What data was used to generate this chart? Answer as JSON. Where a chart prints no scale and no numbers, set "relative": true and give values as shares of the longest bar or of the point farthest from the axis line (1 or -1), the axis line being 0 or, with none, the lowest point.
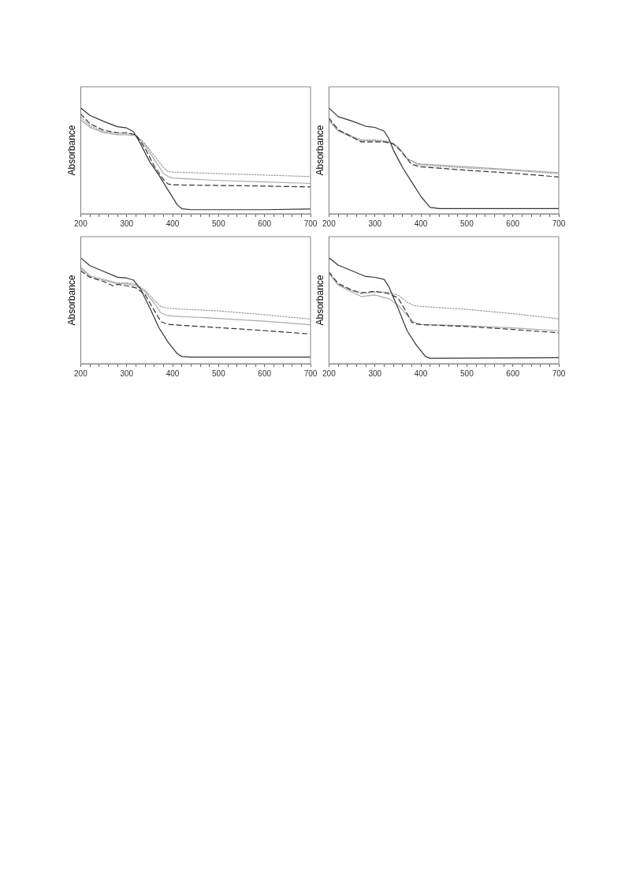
{
  "chart_data": [
    {
      "type": "line",
      "ylabel": "Absorbance",
      "relative": true,
      "xlim": [
        200,
        700
      ],
      "xticks": [
        200,
        {
          "value": 220,
          "label": null
        },
        {
          "value": 240,
          "label": null
        },
        {
          "value": 260,
          "label": null
        },
        {
          "value": 280,
          "label": null
        },
        300,
        {
          "value": 320,
          "label": null
        },
        {
          "value": 340,
          "label": null
        },
        {
          "value": 360,
          "label": null
        },
        {
          "value": 380,
          "label": null
        },
        400,
        {
          "value": 420,
          "label": null
        },
        {
          "value": 440,
          "label": null
        },
        {
          "value": 460,
          "label": null
        },
        {
          "value": 480,
          "label": null
        },
        500,
        {
          "value": 520,
          "label": null
        },
        {
          "value": 540,
          "label": null
        },
        {
          "value": 560,
          "label": null
        },
        {
          "value": 580,
          "label": null
        },
        600,
        {
          "value": 620,
          "label": null
        },
        {
          "value": 640,
          "label": null
        },
        {
          "value": 660,
          "label": null
        },
        {
          "value": 680,
          "label": null
        },
        700
      ],
      "grid": false,
      "legend": false,
      "marker": "none",
      "series": [
        {
          "color": "#333333",
          "line_style": "solid",
          "x": [
            200,
            220,
            250,
            280,
            300,
            315,
            330,
            350,
            370,
            390,
            410,
            420,
            440,
            500,
            600,
            700
          ],
          "values": [
            1.0,
            0.93,
            0.873,
            0.823,
            0.811,
            0.775,
            0.662,
            0.493,
            0.366,
            0.225,
            0.085,
            0.048,
            0.039,
            0.039,
            0.039,
            0.045
          ]
        },
        {
          "color": "#333333",
          "line_style": "dashed",
          "x": [
            200,
            220,
            250,
            280,
            300,
            320,
            340,
            360,
            380,
            390,
            400,
            500,
            600,
            700
          ],
          "values": [
            0.944,
            0.851,
            0.789,
            0.766,
            0.766,
            0.746,
            0.62,
            0.451,
            0.324,
            0.282,
            0.273,
            0.268,
            0.262,
            0.254
          ]
        },
        {
          "color": "#aaaaaa",
          "line_style": "solid",
          "x": [
            200,
            220,
            250,
            280,
            300,
            320,
            340,
            360,
            380,
            390,
            400,
            500,
            600,
            700
          ],
          "values": [
            0.887,
            0.817,
            0.766,
            0.746,
            0.746,
            0.738,
            0.648,
            0.513,
            0.38,
            0.352,
            0.338,
            0.315,
            0.301,
            0.287
          ]
        },
        {
          "color": "#999999",
          "line_style": "dotted",
          "x": [
            200,
            220,
            250,
            280,
            300,
            320,
            340,
            360,
            380,
            390,
            400,
            500,
            600,
            700
          ],
          "values": [
            0.915,
            0.831,
            0.775,
            0.761,
            0.761,
            0.744,
            0.662,
            0.549,
            0.437,
            0.4,
            0.394,
            0.38,
            0.366,
            0.352
          ]
        }
      ]
    },
    {
      "type": "line",
      "ylabel": "Absorbance",
      "relative": true,
      "xlim": [
        200,
        700
      ],
      "xticks": [
        200,
        {
          "value": 220,
          "label": null
        },
        {
          "value": 240,
          "label": null
        },
        {
          "value": 260,
          "label": null
        },
        {
          "value": 280,
          "label": null
        },
        300,
        {
          "value": 320,
          "label": null
        },
        {
          "value": 340,
          "label": null
        },
        {
          "value": 360,
          "label": null
        },
        {
          "value": 380,
          "label": null
        },
        400,
        {
          "value": 420,
          "label": null
        },
        {
          "value": 440,
          "label": null
        },
        {
          "value": 460,
          "label": null
        },
        {
          "value": 480,
          "label": null
        },
        500,
        {
          "value": 520,
          "label": null
        },
        {
          "value": 540,
          "label": null
        },
        {
          "value": 560,
          "label": null
        },
        {
          "value": 580,
          "label": null
        },
        600,
        {
          "value": 620,
          "label": null
        },
        {
          "value": 640,
          "label": null
        },
        {
          "value": 660,
          "label": null
        },
        {
          "value": 680,
          "label": null
        },
        700
      ],
      "grid": false,
      "legend": false,
      "marker": "none",
      "series": [
        {
          "color": "#333333",
          "line_style": "solid",
          "x": [
            200,
            220,
            250,
            280,
            300,
            320,
            330,
            340,
            360,
            380,
            400,
            420,
            440,
            700
          ],
          "values": [
            1.0,
            0.918,
            0.877,
            0.827,
            0.816,
            0.781,
            0.712,
            0.603,
            0.438,
            0.301,
            0.164,
            0.06,
            0.049,
            0.049
          ]
        },
        {
          "color": "#333333",
          "line_style": "dashed",
          "x": [
            200,
            220,
            250,
            270,
            300,
            320,
            340,
            360,
            380,
            400,
            500,
            600,
            700
          ],
          "values": [
            0.904,
            0.795,
            0.726,
            0.679,
            0.679,
            0.679,
            0.663,
            0.575,
            0.466,
            0.444,
            0.411,
            0.384,
            0.348
          ]
        },
        {
          "color": "#aaaaaa",
          "line_style": "solid",
          "x": [
            200,
            220,
            250,
            270,
            300,
            330,
            350,
            370,
            390,
            400,
            500,
            600,
            700
          ],
          "values": [
            0.877,
            0.781,
            0.726,
            0.69,
            0.69,
            0.679,
            0.63,
            0.521,
            0.479,
            0.471,
            0.444,
            0.416,
            0.389
          ]
        },
        {
          "color": "#999999",
          "line_style": "dotted",
          "x": [
            200,
            220,
            250,
            270,
            300,
            330,
            350,
            370,
            390,
            400,
            500,
            600,
            700
          ],
          "values": [
            0.89,
            0.789,
            0.734,
            0.699,
            0.699,
            0.685,
            0.636,
            0.526,
            0.471,
            0.46,
            0.433,
            0.411,
            0.378
          ]
        }
      ]
    },
    {
      "type": "line",
      "ylabel": "Absorbance",
      "relative": true,
      "xlim": [
        200,
        700
      ],
      "xticks": [
        200,
        {
          "value": 220,
          "label": null
        },
        {
          "value": 240,
          "label": null
        },
        {
          "value": 260,
          "label": null
        },
        {
          "value": 280,
          "label": null
        },
        300,
        {
          "value": 320,
          "label": null
        },
        {
          "value": 340,
          "label": null
        },
        {
          "value": 360,
          "label": null
        },
        {
          "value": 380,
          "label": null
        },
        400,
        {
          "value": 420,
          "label": null
        },
        {
          "value": 440,
          "label": null
        },
        {
          "value": 460,
          "label": null
        },
        {
          "value": 480,
          "label": null
        },
        500,
        {
          "value": 520,
          "label": null
        },
        {
          "value": 540,
          "label": null
        },
        {
          "value": 560,
          "label": null
        },
        {
          "value": 580,
          "label": null
        },
        600,
        {
          "value": 620,
          "label": null
        },
        {
          "value": 640,
          "label": null
        },
        {
          "value": 660,
          "label": null
        },
        {
          "value": 680,
          "label": null
        },
        700
      ],
      "grid": false,
      "legend": false,
      "marker": "none",
      "series": [
        {
          "color": "#333333",
          "line_style": "solid",
          "x": [
            200,
            220,
            250,
            280,
            300,
            315,
            330,
            350,
            370,
            390,
            410,
            420,
            440,
            700
          ],
          "values": [
            1.0,
            0.926,
            0.872,
            0.817,
            0.809,
            0.79,
            0.708,
            0.531,
            0.341,
            0.204,
            0.095,
            0.068,
            0.063,
            0.063
          ]
        },
        {
          "color": "#333333",
          "line_style": "dashed",
          "x": [
            200,
            220,
            250,
            270,
            280,
            300,
            320,
            340,
            360,
            375,
            390,
            400,
            500,
            600,
            700
          ],
          "values": [
            0.877,
            0.817,
            0.777,
            0.736,
            0.749,
            0.736,
            0.717,
            0.654,
            0.504,
            0.395,
            0.373,
            0.368,
            0.341,
            0.313,
            0.281
          ]
        },
        {
          "color": "#aaaaaa",
          "line_style": "solid",
          "x": [
            200,
            220,
            250,
            280,
            300,
            320,
            340,
            360,
            375,
            390,
            400,
            500,
            600,
            700
          ],
          "values": [
            0.913,
            0.831,
            0.79,
            0.755,
            0.755,
            0.736,
            0.681,
            0.572,
            0.477,
            0.455,
            0.45,
            0.428,
            0.401,
            0.368
          ]
        },
        {
          "color": "#999999",
          "line_style": "dotted",
          "x": [
            200,
            220,
            250,
            280,
            300,
            320,
            340,
            360,
            375,
            390,
            400,
            500,
            600,
            700
          ],
          "values": [
            0.899,
            0.826,
            0.796,
            0.763,
            0.763,
            0.749,
            0.695,
            0.599,
            0.537,
            0.526,
            0.52,
            0.499,
            0.463,
            0.422
          ]
        }
      ]
    },
    {
      "type": "line",
      "ylabel": "Absorbance",
      "relative": true,
      "xlim": [
        200,
        700
      ],
      "xticks": [
        200,
        {
          "value": 220,
          "label": null
        },
        {
          "value": 240,
          "label": null
        },
        {
          "value": 260,
          "label": null
        },
        {
          "value": 280,
          "label": null
        },
        300,
        {
          "value": 320,
          "label": null
        },
        {
          "value": 340,
          "label": null
        },
        {
          "value": 360,
          "label": null
        },
        {
          "value": 380,
          "label": null
        },
        400,
        {
          "value": 420,
          "label": null
        },
        {
          "value": 440,
          "label": null
        },
        {
          "value": 460,
          "label": null
        },
        {
          "value": 480,
          "label": null
        },
        500,
        {
          "value": 520,
          "label": null
        },
        {
          "value": 540,
          "label": null
        },
        {
          "value": 560,
          "label": null
        },
        {
          "value": 580,
          "label": null
        },
        600,
        {
          "value": 620,
          "label": null
        },
        {
          "value": 640,
          "label": null
        },
        {
          "value": 660,
          "label": null
        },
        {
          "value": 680,
          "label": null
        },
        700
      ],
      "grid": false,
      "legend": false,
      "marker": "none",
      "series": [
        {
          "color": "#333333",
          "line_style": "solid",
          "x": [
            200,
            220,
            250,
            280,
            300,
            320,
            330,
            350,
            370,
            390,
            410,
            420,
            440,
            700
          ],
          "values": [
            1.0,
            0.932,
            0.878,
            0.824,
            0.816,
            0.797,
            0.73,
            0.527,
            0.311,
            0.176,
            0.068,
            0.051,
            0.051,
            0.057
          ]
        },
        {
          "color": "#333333",
          "line_style": "dashed",
          "x": [
            200,
            220,
            250,
            270,
            300,
            330,
            350,
            365,
            380,
            390,
            400,
            500,
            600,
            700
          ],
          "values": [
            0.865,
            0.757,
            0.695,
            0.67,
            0.684,
            0.662,
            0.622,
            0.514,
            0.392,
            0.376,
            0.37,
            0.351,
            0.324,
            0.292
          ]
        },
        {
          "color": "#aaaaaa",
          "line_style": "solid",
          "x": [
            200,
            220,
            250,
            270,
            300,
            330,
            350,
            370,
            385,
            400,
            500,
            600,
            700
          ],
          "values": [
            0.851,
            0.743,
            0.676,
            0.635,
            0.649,
            0.614,
            0.554,
            0.459,
            0.392,
            0.37,
            0.359,
            0.338,
            0.311
          ]
        },
        {
          "color": "#999999",
          "line_style": "dotted",
          "x": [
            200,
            220,
            250,
            270,
            300,
            330,
            350,
            370,
            385,
            400,
            500,
            600,
            700
          ],
          "values": [
            0.857,
            0.749,
            0.689,
            0.662,
            0.676,
            0.676,
            0.649,
            0.581,
            0.549,
            0.541,
            0.514,
            0.473,
            0.424
          ]
        }
      ]
    }
  ]
}
